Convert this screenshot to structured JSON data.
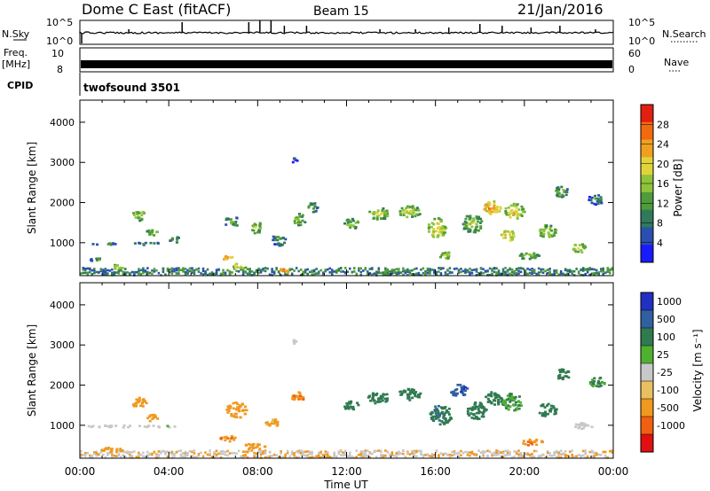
{
  "header": {
    "title": "Dome C East (fitACF)",
    "beam": "Beam 15",
    "date": "21/Jan/2016"
  },
  "top_panels": {
    "nsky_label": "N.Sky",
    "nsearch_label": "N.Search",
    "nsky_ticks": [
      "10^5",
      "10^0"
    ],
    "freq_label": "Freq.",
    "freq_unit": "[MHz]",
    "freq_ticks": [
      "10",
      "8"
    ],
    "nave_label": "Nave",
    "nave_ticks": [
      "60",
      "0"
    ],
    "cpid_label": "CPID",
    "cpid_value": "twofsound 3501"
  },
  "colors": {
    "power_scale": [
      "#1a1aff",
      "#2b4fb0",
      "#2f7a5a",
      "#4f9a3a",
      "#8fc43a",
      "#e0d43a",
      "#f0a020",
      "#f06a10",
      "#e02010"
    ],
    "velocity_scale": [
      "#2030c0",
      "#3060a0",
      "#307a50",
      "#50b030",
      "#c8c8c8",
      "#e8c060",
      "#f09820",
      "#f06010",
      "#e01010"
    ]
  },
  "chart_data": [
    {
      "type": "heatmap",
      "name": "power",
      "ylabel": "Slant Range [km]",
      "xlabel": "",
      "x_ticks": [
        "00:00",
        "04:00",
        "08:00",
        "12:00",
        "16:00",
        "20:00",
        "00:00"
      ],
      "y_ticks": [
        1000,
        2000,
        3000,
        4000
      ],
      "xlim": [
        0,
        24
      ],
      "ylim": [
        180,
        4550
      ],
      "colorbar_label": "Power [dB]",
      "colorbar_ticks": [
        4,
        8,
        12,
        16,
        20,
        24,
        28
      ],
      "colorbar_range": [
        0,
        32
      ],
      "blobs": [
        {
          "t": 1.0,
          "r": 1000,
          "dt": 1.2,
          "dr": 60,
          "v": 14
        },
        {
          "t": 3.0,
          "r": 1000,
          "dt": 1.5,
          "dr": 60,
          "v": 14
        },
        {
          "t": 0.8,
          "r": 600,
          "dt": 0.8,
          "dr": 80,
          "v": 15
        },
        {
          "t": 1.6,
          "r": 420,
          "dt": 0.6,
          "dr": 120,
          "v": 22
        },
        {
          "t": 2.6,
          "r": 1700,
          "dt": 0.6,
          "dr": 250,
          "v": 20
        },
        {
          "t": 3.2,
          "r": 1300,
          "dt": 0.5,
          "dr": 200,
          "v": 18
        },
        {
          "t": 4.2,
          "r": 1100,
          "dt": 0.5,
          "dr": 180,
          "v": 14
        },
        {
          "t": 6.8,
          "r": 1550,
          "dt": 0.7,
          "dr": 250,
          "v": 16
        },
        {
          "t": 6.6,
          "r": 650,
          "dt": 0.6,
          "dr": 120,
          "v": 26
        },
        {
          "t": 7.2,
          "r": 450,
          "dt": 0.7,
          "dr": 120,
          "v": 24
        },
        {
          "t": 7.9,
          "r": 1400,
          "dt": 0.5,
          "dr": 300,
          "v": 18
        },
        {
          "t": 9.1,
          "r": 320,
          "dt": 0.5,
          "dr": 120,
          "v": 30
        },
        {
          "t": 8.9,
          "r": 1100,
          "dt": 0.6,
          "dr": 300,
          "v": 14
        },
        {
          "t": 9.8,
          "r": 1600,
          "dt": 0.6,
          "dr": 300,
          "v": 18
        },
        {
          "t": 10.4,
          "r": 1900,
          "dt": 0.5,
          "dr": 250,
          "v": 16
        },
        {
          "t": 12.2,
          "r": 1500,
          "dt": 0.7,
          "dr": 250,
          "v": 18
        },
        {
          "t": 13.4,
          "r": 1750,
          "dt": 1.0,
          "dr": 300,
          "v": 20
        },
        {
          "t": 14.8,
          "r": 1800,
          "dt": 1.0,
          "dr": 300,
          "v": 20
        },
        {
          "t": 16.0,
          "r": 1400,
          "dt": 0.9,
          "dr": 500,
          "v": 22
        },
        {
          "t": 16.4,
          "r": 700,
          "dt": 0.6,
          "dr": 200,
          "v": 20
        },
        {
          "t": 17.6,
          "r": 1500,
          "dt": 0.9,
          "dr": 450,
          "v": 18
        },
        {
          "t": 18.5,
          "r": 1900,
          "dt": 0.8,
          "dr": 350,
          "v": 26
        },
        {
          "t": 19.2,
          "r": 1200,
          "dt": 0.6,
          "dr": 300,
          "v": 24
        },
        {
          "t": 19.5,
          "r": 1800,
          "dt": 0.9,
          "dr": 400,
          "v": 22
        },
        {
          "t": 20.2,
          "r": 700,
          "dt": 0.9,
          "dr": 200,
          "v": 18
        },
        {
          "t": 21.0,
          "r": 1300,
          "dt": 0.8,
          "dr": 350,
          "v": 20
        },
        {
          "t": 21.6,
          "r": 2300,
          "dt": 0.6,
          "dr": 300,
          "v": 16
        },
        {
          "t": 22.4,
          "r": 900,
          "dt": 0.6,
          "dr": 250,
          "v": 20
        },
        {
          "t": 23.2,
          "r": 2100,
          "dt": 0.8,
          "dr": 250,
          "v": 12
        },
        {
          "t": 9.6,
          "r": 3100,
          "dt": 0.3,
          "dr": 150,
          "v": 8
        }
      ]
    },
    {
      "type": "heatmap",
      "name": "velocity",
      "ylabel": "Slant Range [km]",
      "xlabel": "Time UT",
      "x_ticks": [
        "00:00",
        "04:00",
        "08:00",
        "12:00",
        "16:00",
        "20:00",
        "00:00"
      ],
      "y_ticks": [
        1000,
        2000,
        3000,
        4000
      ],
      "xlim": [
        0,
        24
      ],
      "ylim": [
        180,
        4550
      ],
      "colorbar_label": "Velocity [m s⁻¹]",
      "colorbar_ticks": [
        "1000",
        "500",
        "100",
        "25",
        "-25",
        "-100",
        "-500",
        "-1000"
      ],
      "blobs": [
        {
          "t": 1.5,
          "r": 1000,
          "dt": 2.5,
          "dr": 60,
          "v": 0
        },
        {
          "t": 3.5,
          "r": 1000,
          "dt": 1.5,
          "dr": 60,
          "v": 0
        },
        {
          "t": 1.4,
          "r": 420,
          "dt": 1.0,
          "dr": 120,
          "v": -300
        },
        {
          "t": 2.6,
          "r": 1600,
          "dt": 0.7,
          "dr": 250,
          "v": -200
        },
        {
          "t": 3.2,
          "r": 1200,
          "dt": 0.5,
          "dr": 200,
          "v": -300
        },
        {
          "t": 6.6,
          "r": 700,
          "dt": 0.8,
          "dr": 150,
          "v": -400
        },
        {
          "t": 7.0,
          "r": 1400,
          "dt": 0.9,
          "dr": 400,
          "v": -300
        },
        {
          "t": 7.8,
          "r": 500,
          "dt": 1.0,
          "dr": 150,
          "v": -350
        },
        {
          "t": 8.6,
          "r": 1100,
          "dt": 0.6,
          "dr": 250,
          "v": -150
        },
        {
          "t": 9.8,
          "r": 1700,
          "dt": 0.6,
          "dr": 300,
          "v": -500
        },
        {
          "t": 9.6,
          "r": 3100,
          "dt": 0.3,
          "dr": 120,
          "v": 0
        },
        {
          "t": 12.2,
          "r": 1500,
          "dt": 0.7,
          "dr": 250,
          "v": 300
        },
        {
          "t": 13.4,
          "r": 1700,
          "dt": 1.0,
          "dr": 300,
          "v": 200
        },
        {
          "t": 14.8,
          "r": 1800,
          "dt": 1.0,
          "dr": 300,
          "v": 300
        },
        {
          "t": 16.2,
          "r": 1300,
          "dt": 1.0,
          "dr": 500,
          "v": 400
        },
        {
          "t": 17.0,
          "r": 1900,
          "dt": 0.8,
          "dr": 300,
          "v": 800
        },
        {
          "t": 17.8,
          "r": 1400,
          "dt": 0.9,
          "dr": 450,
          "v": 300
        },
        {
          "t": 18.6,
          "r": 1700,
          "dt": 0.8,
          "dr": 350,
          "v": 200
        },
        {
          "t": 19.4,
          "r": 1600,
          "dt": 0.9,
          "dr": 450,
          "v": 100
        },
        {
          "t": 20.3,
          "r": 600,
          "dt": 1.0,
          "dr": 150,
          "v": -400
        },
        {
          "t": 21.0,
          "r": 1400,
          "dt": 0.8,
          "dr": 350,
          "v": 300
        },
        {
          "t": 21.7,
          "r": 2300,
          "dt": 0.6,
          "dr": 300,
          "v": 200
        },
        {
          "t": 22.6,
          "r": 1000,
          "dt": 0.8,
          "dr": 200,
          "v": 0
        },
        {
          "t": 23.2,
          "r": 2100,
          "dt": 0.8,
          "dr": 250,
          "v": 100
        }
      ]
    }
  ]
}
